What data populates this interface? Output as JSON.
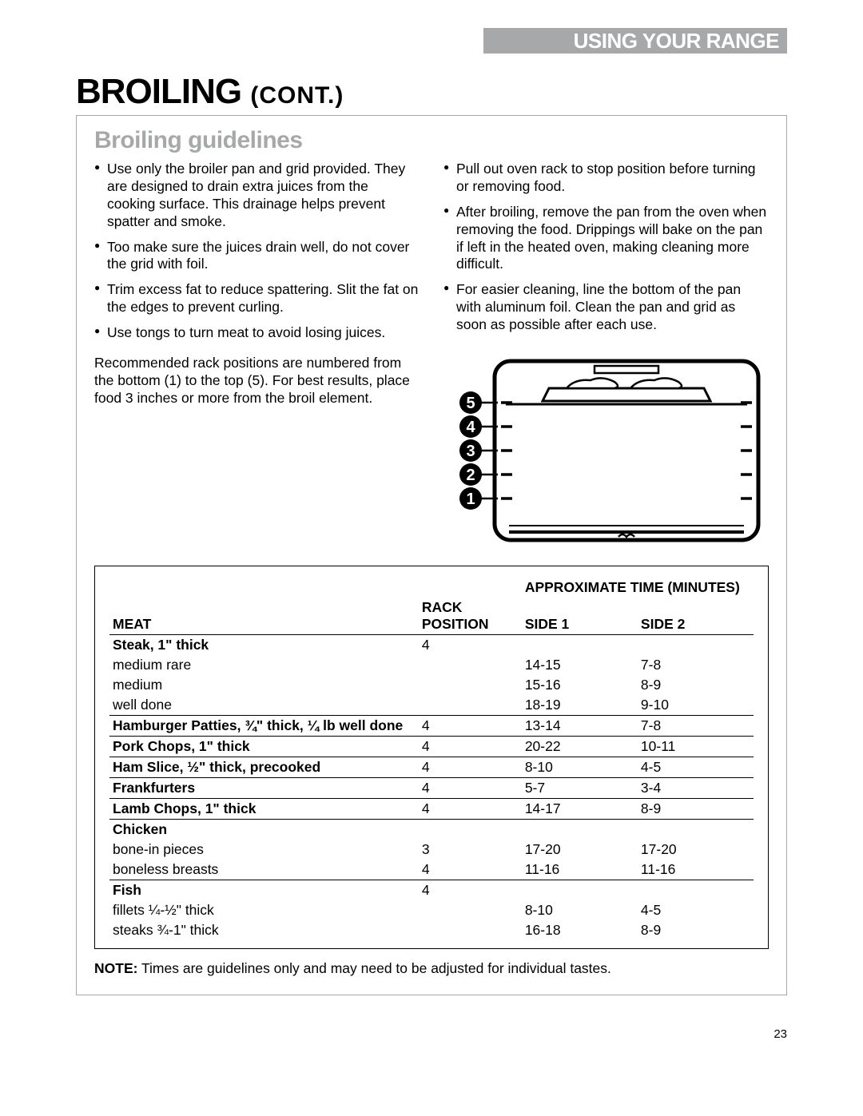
{
  "header": {
    "section": "USING YOUR RANGE"
  },
  "title": {
    "main": "BROILING",
    "cont": "(CONT.)"
  },
  "subheading": "Broiling guidelines",
  "bullets_left": [
    "Use only the broiler pan and grid provided. They are designed to drain extra juices from the cooking surface. This drainage helps prevent spatter and smoke.",
    "Too make sure the juices drain well, do not cover the grid with foil.",
    "Trim excess fat to reduce spattering. Slit the fat on the edges to prevent curling.",
    "Use tongs to turn meat to avoid losing juices."
  ],
  "bullets_right": [
    "Pull out oven rack to stop position before turning or removing food.",
    "After broiling, remove the pan from the oven when removing the food. Drippings will bake on the pan if left in the heated oven, making cleaning more difficult.",
    "For easier cleaning, line the bottom of the pan with aluminum foil. Clean the pan and grid as soon as possible after each use."
  ],
  "rack_text": "Recommended rack positions are numbered from the bottom (1) to the top (5). For best results, place food 3 inches or more from the broil element.",
  "oven_labels": [
    "5",
    "4",
    "3",
    "2",
    "1"
  ],
  "table": {
    "headers": {
      "meat": "MEAT",
      "rack": "RACK POSITION",
      "approx": "APPROXIMATE TIME (MINUTES)",
      "side1": "SIDE 1",
      "side2": "SIDE 2"
    },
    "rows": [
      {
        "type": "sep",
        "label": "Steak, 1\" thick",
        "rack": "4",
        "s1": "",
        "s2": "",
        "bold": true
      },
      {
        "type": "sub",
        "label": "medium rare",
        "rack": "",
        "s1": "14-15",
        "s2": "7-8"
      },
      {
        "type": "sub",
        "label": "medium",
        "rack": "",
        "s1": "15-16",
        "s2": "8-9"
      },
      {
        "type": "sub",
        "label": "well done",
        "rack": "",
        "s1": "18-19",
        "s2": "9-10"
      },
      {
        "type": "sep",
        "label": "Hamburger Patties, ¾\" thick, ¼ lb well done",
        "rack": "4",
        "s1": "13-14",
        "s2": "7-8",
        "bold": true
      },
      {
        "type": "sep",
        "label": "Pork Chops, 1\" thick",
        "rack": "4",
        "s1": "20-22",
        "s2": "10-11",
        "bold": true
      },
      {
        "type": "sep",
        "label": "Ham Slice, ½\" thick, precooked",
        "rack": "4",
        "s1": "8-10",
        "s2": "4-5",
        "bold": true
      },
      {
        "type": "sep",
        "label": "Frankfurters",
        "rack": "4",
        "s1": "5-7",
        "s2": "3-4",
        "bold": true
      },
      {
        "type": "sep",
        "label": "Lamb Chops, 1\" thick",
        "rack": "4",
        "s1": "14-17",
        "s2": "8-9",
        "bold": true
      },
      {
        "type": "sep",
        "label": "Chicken",
        "rack": "",
        "s1": "",
        "s2": "",
        "bold": true
      },
      {
        "type": "sub",
        "label": "bone-in pieces",
        "rack": "3",
        "s1": "17-20",
        "s2": "17-20"
      },
      {
        "type": "sub",
        "label": "boneless breasts",
        "rack": "4",
        "s1": "11-16",
        "s2": "11-16"
      },
      {
        "type": "sep",
        "label": "Fish",
        "rack": "4",
        "s1": "",
        "s2": "",
        "bold": true
      },
      {
        "type": "sub",
        "label": "fillets ¼-½\" thick",
        "rack": "",
        "s1": "8-10",
        "s2": "4-5"
      },
      {
        "type": "sub",
        "label": "steaks ¾-1\" thick",
        "rack": "",
        "s1": "16-18",
        "s2": "8-9"
      }
    ]
  },
  "note_label": "NOTE:",
  "note_text": " Times are guidelines only and may need to be adjusted for individual tastes.",
  "page_number": "23",
  "colors": {
    "gray": "#a7a8a9",
    "black": "#000000",
    "white": "#ffffff"
  }
}
